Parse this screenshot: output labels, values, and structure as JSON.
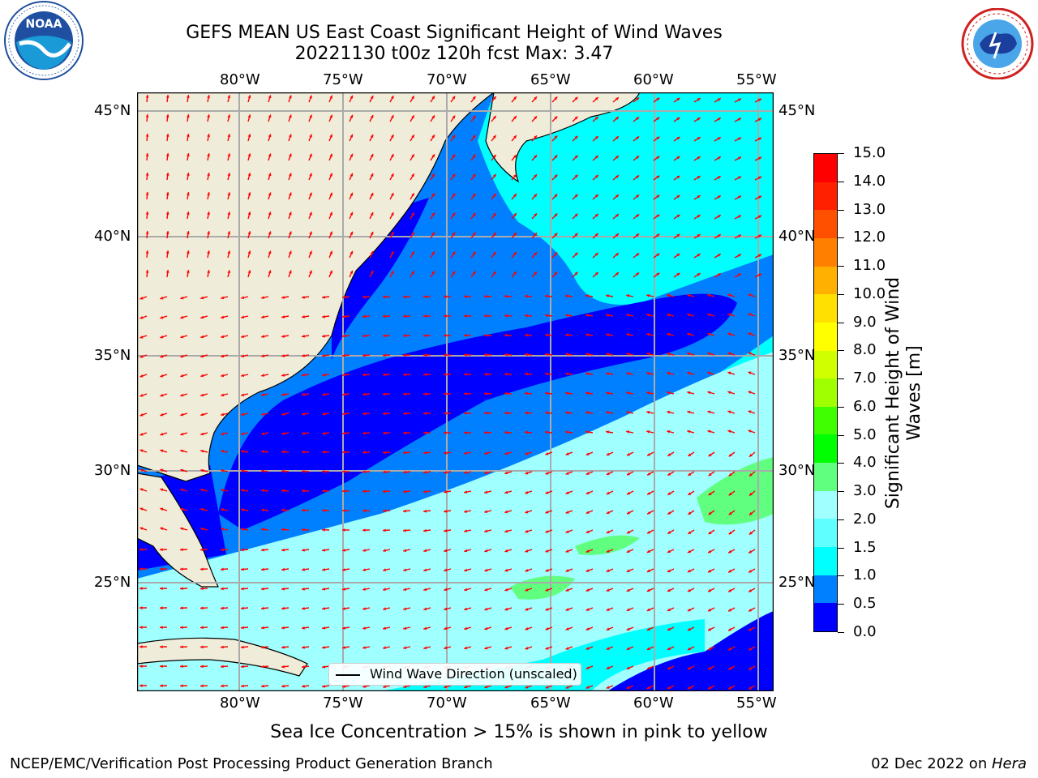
{
  "header": {
    "title_line1": "GEFS MEAN US East Coast Significant Height of Wind Waves",
    "title_line2": "20221130 t00z 120h fcst   Max: 3.47"
  },
  "logos": {
    "left": {
      "name": "NOAA",
      "ring_text": "NATIONAL OCEANIC AND ATMOSPHERIC ADMINISTRATION · U.S. DEPARTMENT OF COMMERCE"
    },
    "right": {
      "name": "NATIONAL WEATHER SERVICE"
    }
  },
  "axes": {
    "lon_labels": [
      "80°W",
      "75°W",
      "70°W",
      "65°W",
      "60°W",
      "55°W"
    ],
    "lat_labels": [
      "45°N",
      "40°N",
      "35°N",
      "30°N",
      "25°N"
    ]
  },
  "legend": {
    "label": "Wind Wave Direction (unscaled)"
  },
  "colorbar": {
    "title": "Significant Height of Wind Waves [m]",
    "ticks": [
      "15.0",
      "14.0",
      "13.0",
      "12.0",
      "11.0",
      "10.0",
      "9.0",
      "8.0",
      "7.0",
      "6.0",
      "5.0",
      "4.0",
      "3.0",
      "2.0",
      "1.5",
      "1.0",
      "0.5",
      "0.0"
    ],
    "colors": [
      "#0000ff",
      "#0080ff",
      "#00ffff",
      "#60ffff",
      "#a0ffff",
      "#60ff80",
      "#00ff00",
      "#40ff00",
      "#a0ff00",
      "#d0ff00",
      "#ffff00",
      "#ffe000",
      "#ffb000",
      "#ff8000",
      "#ff5000",
      "#ff2000",
      "#ff0000"
    ]
  },
  "subtitle": "Sea Ice Concentration > 15% is shown in pink to yellow",
  "footer": {
    "left": "NCEP/EMC/Verification Post Processing Product Generation Branch",
    "date": "02 Dec 2022 on ",
    "machine": "Hera"
  }
}
